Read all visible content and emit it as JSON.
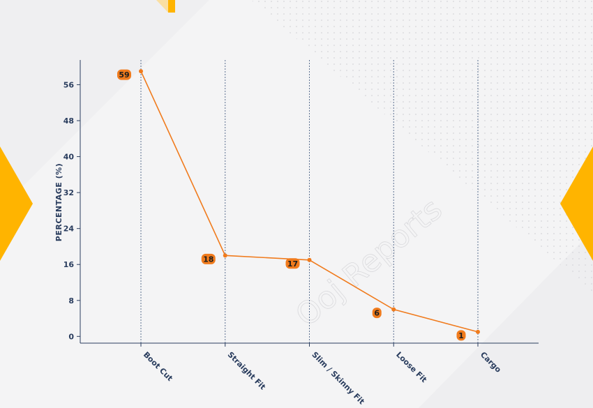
{
  "chart_data": {
    "type": "line",
    "categories": [
      "Boot Cut",
      "Straight Fit",
      "Slim / Skinny Fit",
      "Loose Fit",
      "Cargo"
    ],
    "values": [
      59,
      18,
      17,
      6,
      1
    ],
    "data_labels": [
      "59",
      "18",
      "17",
      "6",
      "1"
    ],
    "title": "",
    "xlabel": "",
    "ylabel": "PERCENTAGE (%)",
    "yticks": [
      0,
      8,
      16,
      24,
      32,
      40,
      48,
      56
    ],
    "ylim": [
      -1.5,
      61.5
    ],
    "grid": "vertical dashed lines at categories",
    "colors": {
      "line": "#f07b1d",
      "label_bg": "#f07b1d",
      "axis": "#2a3d5e",
      "grid": "#5a6f8f",
      "accent": "#ffb400"
    }
  },
  "watermark": "Ooj Reports"
}
